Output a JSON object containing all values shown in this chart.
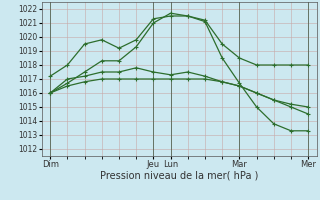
{
  "background_color": "#cce8f0",
  "grid_color": "#c8a8a8",
  "line_color": "#2d6e2d",
  "xlabel": "Pression niveau de la mer( hPa )",
  "ylim": [
    1011.5,
    1022.5
  ],
  "ytick_vals": [
    1012,
    1013,
    1014,
    1015,
    1016,
    1017,
    1018,
    1019,
    1020,
    1021,
    1022
  ],
  "day_labels": [
    "Dim",
    "Jeu",
    "Lun",
    "Mar",
    "Mer"
  ],
  "day_positions": [
    0.0,
    6.0,
    7.0,
    11.0,
    15.0
  ],
  "n_points": 16,
  "series": [
    [
      1016.0,
      1016.7,
      1017.5,
      1018.3,
      1018.3,
      1019.3,
      1021.0,
      1021.7,
      1021.5,
      1021.1,
      1018.5,
      1016.7,
      1015.0,
      1013.8,
      1013.3,
      1013.3
    ],
    [
      1017.2,
      1018.0,
      1019.5,
      1019.8,
      1019.2,
      1019.8,
      1021.3,
      1021.5,
      1021.5,
      1021.2,
      1019.5,
      1018.5,
      1018.0,
      1018.0,
      1018.0,
      1018.0
    ],
    [
      1016.0,
      1017.0,
      1017.2,
      1017.5,
      1017.5,
      1017.8,
      1017.5,
      1017.3,
      1017.5,
      1017.2,
      1016.8,
      1016.5,
      1016.0,
      1015.5,
      1015.2,
      1015.0
    ],
    [
      1016.0,
      1016.5,
      1016.8,
      1017.0,
      1017.0,
      1017.0,
      1017.0,
      1017.0,
      1017.0,
      1017.0,
      1016.8,
      1016.5,
      1016.0,
      1015.5,
      1015.0,
      1014.5
    ]
  ],
  "series_has_markers": [
    true,
    true,
    true,
    true
  ],
  "marker_style": "+",
  "marker_size": 3.5,
  "linewidth": 0.9,
  "vline_positions": [
    0.0,
    6.0,
    7.0,
    11.0,
    15.0
  ],
  "vline_color": "#556655",
  "xlabel_fontsize": 7.0,
  "ytick_fontsize": 5.5,
  "xtick_fontsize": 6.0
}
